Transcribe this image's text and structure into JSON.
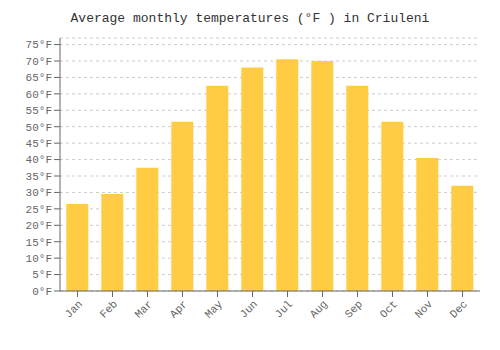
{
  "chart_data": {
    "type": "bar",
    "title": "Average monthly temperatures (°F ) in Criuleni",
    "categories": [
      "Jan",
      "Feb",
      "Mar",
      "Apr",
      "May",
      "Jun",
      "Jul",
      "Aug",
      "Sep",
      "Oct",
      "Nov",
      "Dec"
    ],
    "values": [
      26.5,
      29.5,
      37.5,
      51.5,
      62.5,
      68,
      70.5,
      70,
      62.5,
      51.5,
      40.5,
      32
    ],
    "color": "#FFCC44",
    "ylim": [
      0,
      77
    ],
    "yticks": [
      {
        "value": 0,
        "label": "0°F"
      },
      {
        "value": 5,
        "label": "5°F"
      },
      {
        "value": 10,
        "label": "10°F"
      },
      {
        "value": 15,
        "label": "15°F"
      },
      {
        "value": 20,
        "label": "20°F"
      },
      {
        "value": 25,
        "label": "25°F"
      },
      {
        "value": 30,
        "label": "30°F"
      },
      {
        "value": 35,
        "label": "35°F"
      },
      {
        "value": 40,
        "label": "40°F"
      },
      {
        "value": 45,
        "label": "45°F"
      },
      {
        "value": 50,
        "label": "50°F"
      },
      {
        "value": 55,
        "label": "55°F"
      },
      {
        "value": 60,
        "label": "60°F"
      },
      {
        "value": 65,
        "label": "65°F"
      },
      {
        "value": 70,
        "label": "70°F"
      },
      {
        "value": 75,
        "label": "75°F"
      }
    ],
    "grid": true
  }
}
